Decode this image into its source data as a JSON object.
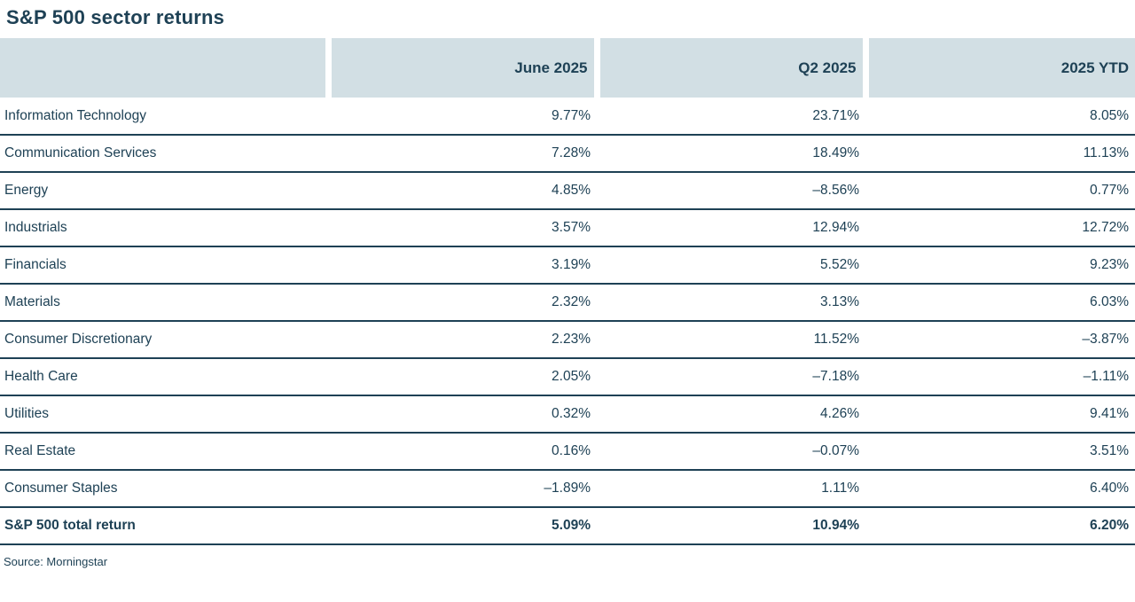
{
  "title": "S&P 500 sector returns",
  "source": "Source: Morningstar",
  "colors": {
    "background": "#ffffff",
    "header_bg": "#d2dfe4",
    "text": "#1e4155",
    "row_border": "#1e4155"
  },
  "table": {
    "columns": [
      "",
      "June 2025",
      "Q2 2025",
      "2025 YTD"
    ],
    "rows": [
      {
        "label": "Information Technology",
        "values": [
          "9.77%",
          "23.71%",
          "8.05%"
        ]
      },
      {
        "label": "Communication Services",
        "values": [
          "7.28%",
          "18.49%",
          "11.13%"
        ]
      },
      {
        "label": "Energy",
        "values": [
          "4.85%",
          "–8.56%",
          "0.77%"
        ]
      },
      {
        "label": "Industrials",
        "values": [
          "3.57%",
          "12.94%",
          "12.72%"
        ]
      },
      {
        "label": "Financials",
        "values": [
          "3.19%",
          "5.52%",
          "9.23%"
        ]
      },
      {
        "label": "Materials",
        "values": [
          "2.32%",
          "3.13%",
          "6.03%"
        ]
      },
      {
        "label": "Consumer Discretionary",
        "values": [
          "2.23%",
          "11.52%",
          "–3.87%"
        ]
      },
      {
        "label": "Health Care",
        "values": [
          "2.05%",
          "–7.18%",
          "–1.11%"
        ]
      },
      {
        "label": "Utilities",
        "values": [
          "0.32%",
          "4.26%",
          "9.41%"
        ]
      },
      {
        "label": "Real Estate",
        "values": [
          "0.16%",
          "–0.07%",
          "3.51%"
        ]
      },
      {
        "label": "Consumer Staples",
        "values": [
          "–1.89%",
          "1.11%",
          "6.40%"
        ]
      },
      {
        "label": "S&P 500 total return",
        "values": [
          "5.09%",
          "10.94%",
          "6.20%"
        ]
      }
    ]
  },
  "chart_data": {
    "type": "table",
    "title": "S&P 500 sector returns",
    "categories": [
      "Information Technology",
      "Communication Services",
      "Energy",
      "Industrials",
      "Financials",
      "Materials",
      "Consumer Discretionary",
      "Health Care",
      "Utilities",
      "Real Estate",
      "Consumer Staples",
      "S&P 500 total return"
    ],
    "series": [
      {
        "name": "June 2025",
        "values": [
          9.77,
          7.28,
          4.85,
          3.57,
          3.19,
          2.32,
          2.23,
          2.05,
          0.32,
          0.16,
          -1.89,
          5.09
        ]
      },
      {
        "name": "Q2 2025",
        "values": [
          23.71,
          18.49,
          -8.56,
          12.94,
          5.52,
          3.13,
          11.52,
          -7.18,
          4.26,
          -0.07,
          1.11,
          10.94
        ]
      },
      {
        "name": "2025 YTD",
        "values": [
          8.05,
          11.13,
          0.77,
          12.72,
          9.23,
          6.03,
          -3.87,
          -1.11,
          9.41,
          3.51,
          6.4,
          6.2
        ]
      }
    ],
    "unit": "%",
    "source": "Source: Morningstar"
  }
}
